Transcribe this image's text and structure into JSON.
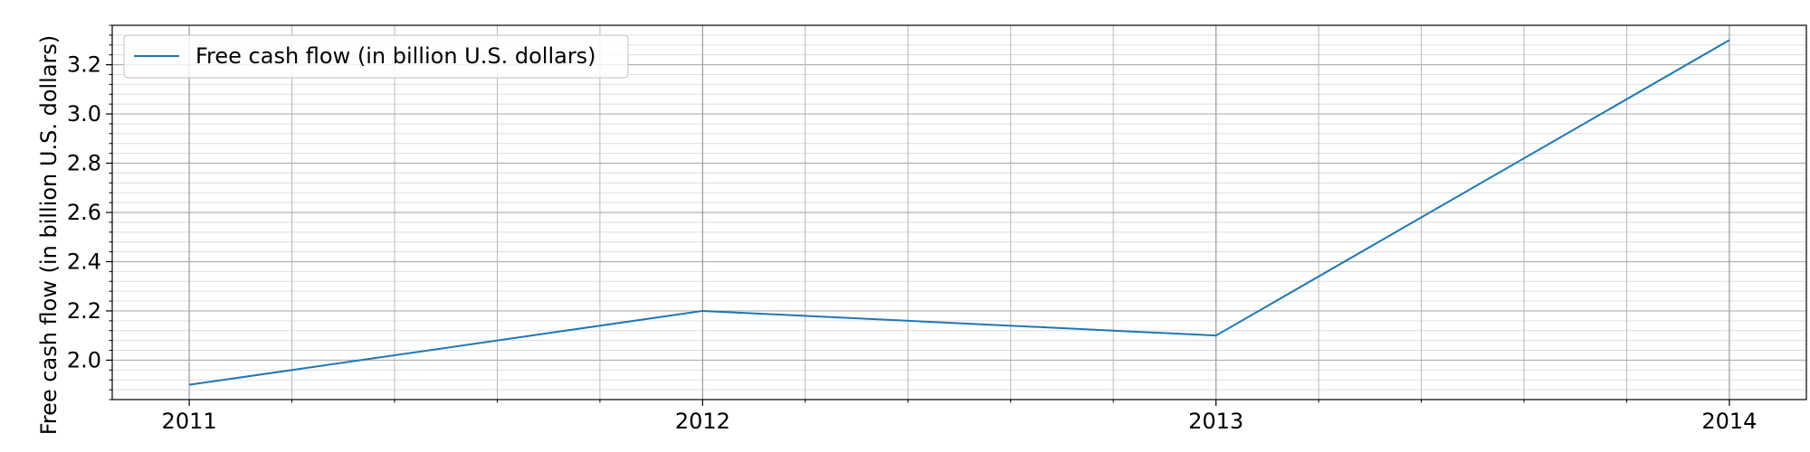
{
  "chart_data": {
    "type": "line",
    "x": [
      "2011",
      "2012",
      "2013",
      "2014"
    ],
    "series": [
      {
        "name": "Free cash flow (in billion U.S. dollars)",
        "values": [
          1.9,
          2.2,
          2.1,
          3.3
        ],
        "color": "#1f77b4"
      }
    ],
    "title": "",
    "xlabel": "",
    "ylabel": "Free cash flow (in billion U.S. dollars)",
    "xlim": [
      2010.85,
      2014.15
    ],
    "ylim": [
      1.84,
      3.36
    ],
    "yticks": [
      2.0,
      2.2,
      2.4,
      2.6,
      2.8,
      3.0,
      3.2
    ],
    "yticks_display": [
      "2.0",
      "2.2",
      "2.4",
      "2.6",
      "2.8",
      "3.0",
      "3.2"
    ],
    "grid": true,
    "minor_grid": true,
    "legend": "top-left"
  }
}
